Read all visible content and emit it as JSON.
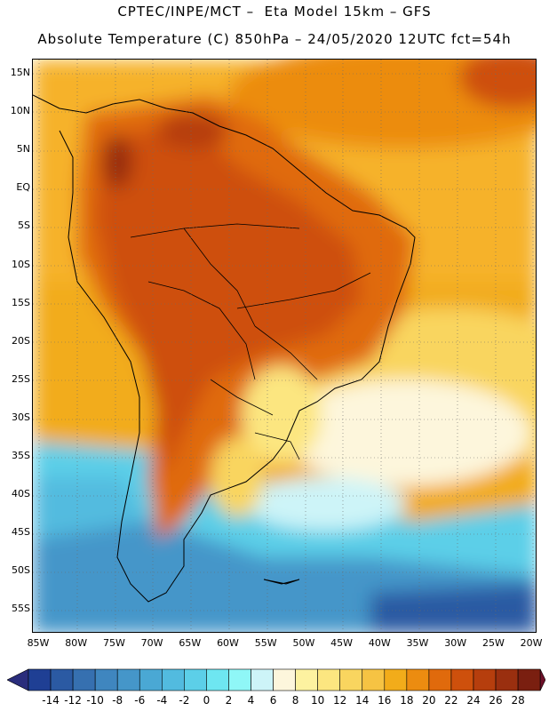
{
  "header": {
    "title_line1": "CPTEC/INPE/MCT –  Eta Model 15km – GFS",
    "title_line2": "Absolute Temperature (C) 850hPa – 24/05/2020 12UTC fct=54h"
  },
  "map": {
    "lat_labels": [
      "15N",
      "10N",
      "5N",
      "EQ",
      "5S",
      "10S",
      "15S",
      "20S",
      "25S",
      "30S",
      "35S",
      "40S",
      "45S",
      "50S",
      "55S"
    ],
    "lon_labels": [
      "85W",
      "80W",
      "75W",
      "70W",
      "65W",
      "60W",
      "55W",
      "50W",
      "45W",
      "40W",
      "35W",
      "30W",
      "25W",
      "20W"
    ]
  },
  "legend": {
    "labels": [
      "-14",
      "-12",
      "-10",
      "-8",
      "-6",
      "-4",
      "-2",
      "0",
      "2",
      "4",
      "6",
      "8",
      "10",
      "12",
      "14",
      "16",
      "18",
      "20",
      "22",
      "24",
      "26",
      "28"
    ],
    "colors": [
      "#1f3f94",
      "#2b5aa3",
      "#3670b0",
      "#3f86bf",
      "#4596c9",
      "#4aa8d4",
      "#52bbdf",
      "#5ccfe8",
      "#6ee6f1",
      "#8ff7f7",
      "#cdf4f8",
      "#fdf6dc",
      "#fdf2a0",
      "#fce680",
      "#f9d55f",
      "#f6c343",
      "#f2ac1a",
      "#ec8c10",
      "#e06a0c",
      "#ce500c",
      "#b63e0d",
      "#9a2f0f",
      "#7a1f10"
    ],
    "low_arrow_color": "#2a2d7c",
    "high_arrow_color": "#6e1028"
  }
}
